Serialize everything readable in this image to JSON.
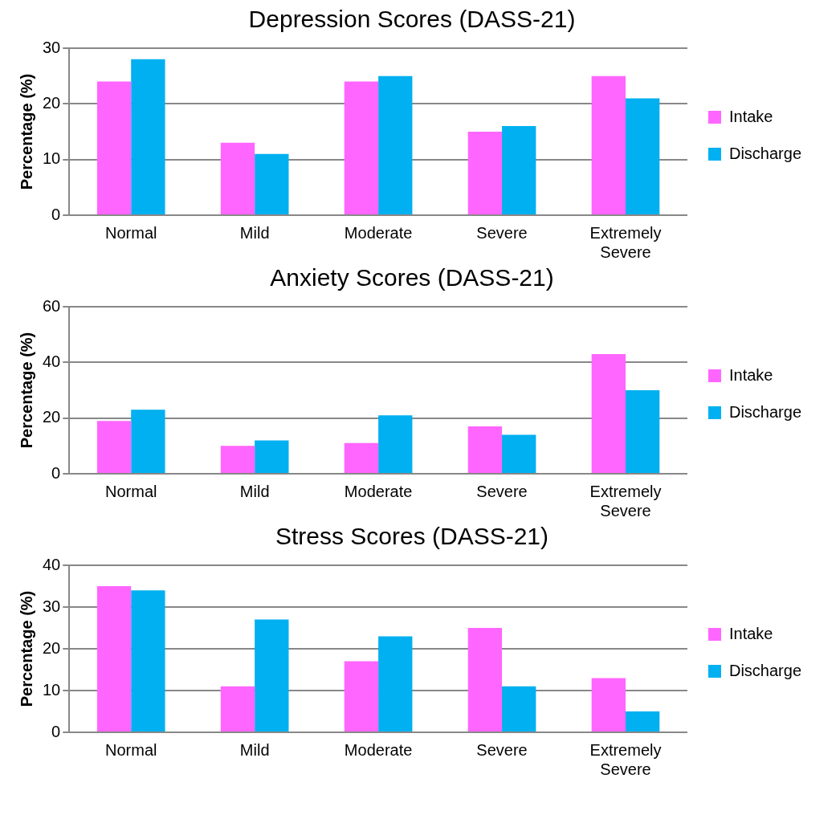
{
  "chart_data": [
    {
      "type": "bar",
      "title": "Depression Scores (DASS-21)",
      "ylabel": "Percentage (%)",
      "categories": [
        "Normal",
        "Mild",
        "Moderate",
        "Severe",
        "Extremely Severe"
      ],
      "series": [
        {
          "name": "Intake",
          "color": "#ff66ff",
          "values": [
            24,
            13,
            24,
            15,
            25
          ]
        },
        {
          "name": "Discharge",
          "color": "#00b0f0",
          "values": [
            28,
            11,
            25,
            16,
            21
          ]
        }
      ],
      "ylim": [
        0,
        30
      ],
      "yticks": [
        0,
        10,
        20,
        30
      ],
      "grid": "y",
      "legend": "right"
    },
    {
      "type": "bar",
      "title": "Anxiety Scores (DASS-21)",
      "ylabel": "Percentage (%)",
      "categories": [
        "Normal",
        "Mild",
        "Moderate",
        "Severe",
        "Extremely Severe"
      ],
      "series": [
        {
          "name": "Intake",
          "color": "#ff66ff",
          "values": [
            19,
            10,
            11,
            17,
            43
          ]
        },
        {
          "name": "Discharge",
          "color": "#00b0f0",
          "values": [
            23,
            12,
            21,
            14,
            30
          ]
        }
      ],
      "ylim": [
        0,
        60
      ],
      "yticks": [
        0,
        20,
        40,
        60
      ],
      "grid": "y",
      "legend": "right"
    },
    {
      "type": "bar",
      "title": "Stress Scores (DASS-21)",
      "ylabel": "Percentage (%)",
      "categories": [
        "Normal",
        "Mild",
        "Moderate",
        "Severe",
        "Extremely Severe"
      ],
      "series": [
        {
          "name": "Intake",
          "color": "#ff66ff",
          "values": [
            35,
            11,
            17,
            25,
            13
          ]
        },
        {
          "name": "Discharge",
          "color": "#00b0f0",
          "values": [
            34,
            27,
            23,
            11,
            5
          ]
        }
      ],
      "ylim": [
        0,
        40
      ],
      "yticks": [
        0,
        10,
        20,
        30,
        40
      ],
      "grid": "y",
      "legend": "right"
    }
  ]
}
